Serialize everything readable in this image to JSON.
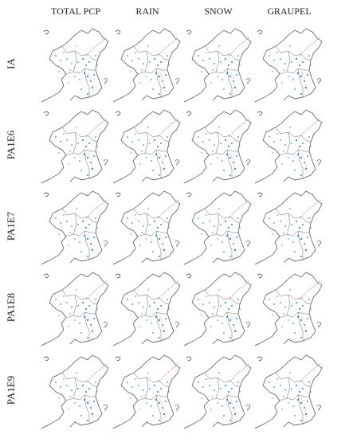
{
  "columns": [
    "TOTAL PCP",
    "RAIN",
    "SNOW",
    "GRAUPEL"
  ],
  "rows": [
    "IA",
    "PA1E6",
    "PA1E7",
    "PA1E8",
    "PA1E9"
  ]
}
